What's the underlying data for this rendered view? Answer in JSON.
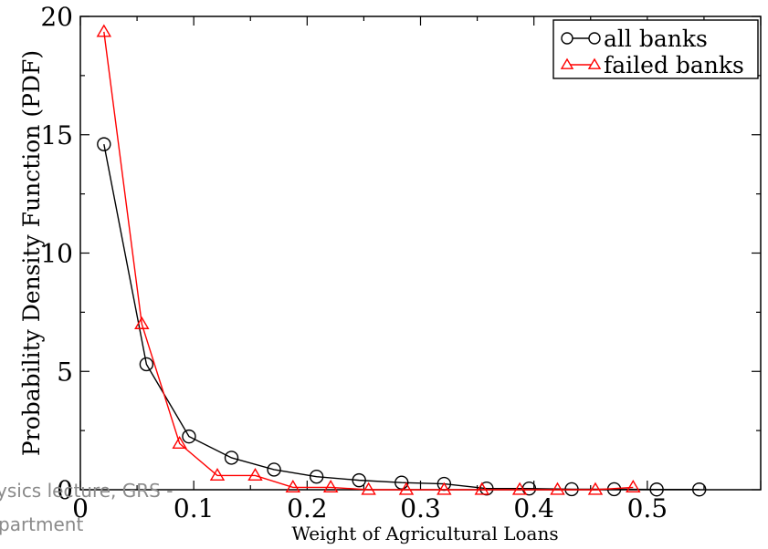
{
  "watermark": {
    "line1": "ysics lecture, GRS -",
    "line2": "partment"
  },
  "chart_data": {
    "type": "line",
    "title": "",
    "xlabel": "Weight of Agricultural Loans",
    "ylabel": "Probability Density Function (PDF)",
    "xlim": [
      0,
      0.6
    ],
    "ylim": [
      0,
      20
    ],
    "xticks": [
      0,
      0.1,
      0.2,
      0.3,
      0.4,
      0.5
    ],
    "xtick_labels": [
      "0",
      "0.1",
      "0.2",
      "0.3",
      "0.4",
      "0.5"
    ],
    "yticks": [
      0,
      5,
      10,
      15,
      20
    ],
    "ytick_labels": [
      "0",
      "5",
      "10",
      "15",
      "20"
    ],
    "grid": false,
    "legend_position": "top-right",
    "series": [
      {
        "name": "all banks",
        "color": "#000000",
        "marker": "circle",
        "x": [
          0.0208,
          0.0583,
          0.0958,
          0.1333,
          0.1708,
          0.2083,
          0.2458,
          0.2833,
          0.3208,
          0.3583,
          0.3958,
          0.4333,
          0.4708,
          0.5083,
          0.5458
        ],
        "y": [
          14.6,
          5.3,
          2.25,
          1.35,
          0.85,
          0.55,
          0.4,
          0.3,
          0.25,
          0.05,
          0.05,
          0.02,
          0.02,
          0.01,
          0.01
        ]
      },
      {
        "name": "failed banks",
        "color": "#ff0000",
        "marker": "triangle",
        "x": [
          0.0208,
          0.0542,
          0.0875,
          0.1208,
          0.1542,
          0.1875,
          0.2208,
          0.2542,
          0.2875,
          0.3208,
          0.3542,
          0.3875,
          0.4208,
          0.4542,
          0.4875
        ],
        "y": [
          19.35,
          7.0,
          1.95,
          0.6,
          0.6,
          0.1,
          0.1,
          0.0,
          0.0,
          0.0,
          0.0,
          0.0,
          0.0,
          0.0,
          0.1
        ]
      }
    ]
  }
}
